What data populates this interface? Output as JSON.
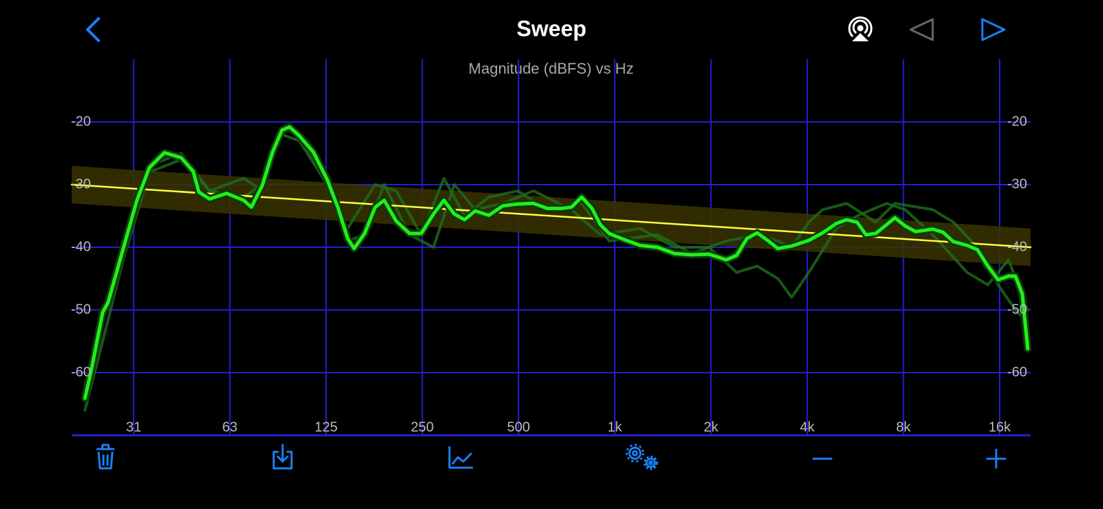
{
  "header": {
    "title": "Sweep"
  },
  "chart_data": {
    "type": "line",
    "title": "Magnitude (dBFS) vs Hz",
    "xscale": "log",
    "xlim": [
      20,
      20000
    ],
    "ylim": [
      -70,
      -10
    ],
    "xticks": [
      {
        "value": 31.25,
        "label": "31"
      },
      {
        "value": 62.5,
        "label": "63"
      },
      125,
      250,
      500,
      {
        "value": 1000,
        "label": "1k"
      },
      {
        "value": 2000,
        "label": "2k"
      },
      {
        "value": 4000,
        "label": "4k"
      },
      {
        "value": 8000,
        "label": "8k"
      },
      {
        "value": 16000,
        "label": "16k"
      }
    ],
    "yticks": [
      -20,
      -30,
      -40,
      -50,
      -60
    ],
    "grid": true,
    "grid_color": "#2020d0",
    "series": [
      {
        "color": "#1f6e1b",
        "x": [
          22,
          25,
          29,
          35,
          44,
          54,
          69,
          79,
          91,
          103,
          126,
          146,
          165,
          190,
          228,
          271,
          315,
          366,
          446,
          557,
          732,
          901,
          1201,
          1539,
          1972,
          2406,
          2790,
          3238,
          3576,
          4048,
          4935,
          5728,
          7088,
          8102,
          9880,
          12660,
          14690,
          17050,
          19590
        ],
        "values": [
          -66,
          -55,
          -42,
          -28,
          -26,
          -31,
          -32,
          -30,
          -22,
          -23,
          -30,
          -39,
          -38,
          -30,
          -38,
          -40,
          -30,
          -34,
          -33,
          -31,
          -34,
          -38,
          -37,
          -40,
          -40,
          -44,
          -43,
          -45,
          -48,
          -44,
          -37,
          -35,
          -33,
          -34,
          -38,
          -44,
          -46,
          -42,
          -50
        ]
      },
      {
        "color": "#1f6e1b",
        "x": [
          22,
          25,
          29,
          35,
          44,
          54,
          69,
          79,
          91,
          103,
          126,
          146,
          178,
          207,
          248,
          292,
          339,
          404,
          497,
          615,
          788,
          961,
          1360,
          1742,
          2233,
          2790,
          3238,
          3576,
          4048,
          4470,
          5317,
          6548,
          7522,
          9880,
          11460,
          13640,
          15830,
          17920,
          19590
        ],
        "values": [
          -62,
          -52,
          -40,
          -27,
          -25,
          -31,
          -29,
          -31,
          -21,
          -22,
          -30,
          -37,
          -30,
          -31,
          -38,
          -29,
          -35,
          -32,
          -31,
          -34,
          -33,
          -39,
          -38,
          -41,
          -39,
          -38,
          -39,
          -40,
          -36,
          -34,
          -33,
          -36,
          -33,
          -34,
          -36,
          -40,
          -46,
          -50,
          -52
        ]
      },
      {
        "color": "#ffff40",
        "band": 3,
        "band_color": "#3a3400",
        "x": [
          20,
          20000
        ],
        "values": [
          -30,
          -40
        ]
      },
      {
        "color": "#22ee1c",
        "x": [
          22,
          23,
          25,
          26,
          29,
          32,
          35,
          39,
          44,
          48,
          50,
          54,
          61,
          69,
          73,
          79,
          85,
          91,
          96,
          103,
          114,
          126,
          136,
          146,
          153,
          165,
          178,
          190,
          207,
          228,
          248,
          271,
          292,
          315,
          339,
          366,
          404,
          446,
          497,
          557,
          615,
          679,
          732,
          788,
          849,
          901,
          961,
          1062,
          1201,
          1360,
          1539,
          1742,
          1972,
          2233,
          2406,
          2590,
          2790,
          3007,
          3238,
          3576,
          4048,
          4470,
          4935,
          5317,
          5728,
          6110,
          6548,
          7088,
          7522,
          8102,
          8732,
          9880,
          10640,
          11460,
          12660,
          13640,
          14690,
          15830,
          17050,
          17920,
          18820,
          19590
        ],
        "values": [
          -64.1,
          -59.8,
          -50.4,
          -48.8,
          -40.2,
          -32.5,
          -27.3,
          -24.9,
          -25.7,
          -27.9,
          -31.2,
          -32.3,
          -31.4,
          -32.5,
          -33.6,
          -30.1,
          -24.8,
          -21.3,
          -20.8,
          -22.2,
          -24.8,
          -29.2,
          -33.6,
          -38.6,
          -40.2,
          -37.8,
          -33.6,
          -32.5,
          -35.8,
          -37.8,
          -37.8,
          -34.7,
          -32.5,
          -34.7,
          -35.6,
          -34.2,
          -34.9,
          -33.4,
          -33.1,
          -33.0,
          -33.8,
          -33.8,
          -33.6,
          -32.0,
          -33.8,
          -36.4,
          -37.8,
          -38.7,
          -39.7,
          -40.0,
          -41.0,
          -41.2,
          -41.1,
          -42.0,
          -41.3,
          -38.6,
          -37.7,
          -38.9,
          -40.2,
          -39.8,
          -38.9,
          -37.7,
          -36.2,
          -35.6,
          -36.0,
          -38.0,
          -37.8,
          -36.4,
          -35.3,
          -36.6,
          -37.5,
          -37.1,
          -37.6,
          -39.1,
          -39.7,
          -40.4,
          -43.0,
          -45.2,
          -44.6,
          -44.6,
          -47.4,
          -56.2
        ]
      }
    ]
  }
}
